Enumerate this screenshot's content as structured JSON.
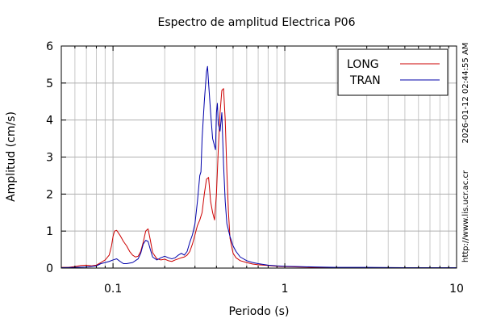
{
  "chart_data": {
    "type": "line",
    "title": "Espectro de amplitud Electrica P06",
    "xlabel": "Periodo (s)",
    "ylabel": "Amplitud (cm/s)",
    "x_scale": "log",
    "xlim": [
      0.05,
      10
    ],
    "ylim": [
      0,
      6
    ],
    "grid": true,
    "legend_position": "top-right",
    "x_ticks": [
      0.1,
      1,
      10
    ],
    "x_tick_labels": [
      "0.1",
      "1",
      "10"
    ],
    "y_ticks": [
      0,
      1,
      2,
      3,
      4,
      5,
      6
    ],
    "y_tick_labels": [
      "0",
      "1",
      "2",
      "3",
      "4",
      "5",
      "6"
    ],
    "side_texts": {
      "timestamp": "2026-01-12 02:44:55 AM",
      "url": "http://www.lis.ucr.ac.cr"
    },
    "series": [
      {
        "name": "LONG",
        "color": "#cc0000",
        "points": [
          [
            0.05,
            0.02
          ],
          [
            0.055,
            0.02
          ],
          [
            0.06,
            0.04
          ],
          [
            0.065,
            0.07
          ],
          [
            0.07,
            0.08
          ],
          [
            0.075,
            0.06
          ],
          [
            0.08,
            0.08
          ],
          [
            0.085,
            0.15
          ],
          [
            0.09,
            0.22
          ],
          [
            0.095,
            0.35
          ],
          [
            0.098,
            0.6
          ],
          [
            0.1,
            0.85
          ],
          [
            0.102,
            1.0
          ],
          [
            0.105,
            1.02
          ],
          [
            0.11,
            0.88
          ],
          [
            0.115,
            0.72
          ],
          [
            0.12,
            0.6
          ],
          [
            0.125,
            0.45
          ],
          [
            0.13,
            0.35
          ],
          [
            0.135,
            0.3
          ],
          [
            0.14,
            0.32
          ],
          [
            0.145,
            0.45
          ],
          [
            0.15,
            0.7
          ],
          [
            0.155,
            1.0
          ],
          [
            0.16,
            1.06
          ],
          [
            0.165,
            0.75
          ],
          [
            0.17,
            0.42
          ],
          [
            0.18,
            0.25
          ],
          [
            0.19,
            0.22
          ],
          [
            0.2,
            0.24
          ],
          [
            0.21,
            0.2
          ],
          [
            0.22,
            0.18
          ],
          [
            0.23,
            0.22
          ],
          [
            0.24,
            0.25
          ],
          [
            0.25,
            0.28
          ],
          [
            0.26,
            0.3
          ],
          [
            0.27,
            0.35
          ],
          [
            0.28,
            0.45
          ],
          [
            0.29,
            0.65
          ],
          [
            0.3,
            0.9
          ],
          [
            0.31,
            1.15
          ],
          [
            0.32,
            1.3
          ],
          [
            0.33,
            1.5
          ],
          [
            0.34,
            2.0
          ],
          [
            0.35,
            2.4
          ],
          [
            0.36,
            2.45
          ],
          [
            0.37,
            1.8
          ],
          [
            0.38,
            1.5
          ],
          [
            0.39,
            1.3
          ],
          [
            0.4,
            2.0
          ],
          [
            0.41,
            3.2
          ],
          [
            0.42,
            4.2
          ],
          [
            0.43,
            4.8
          ],
          [
            0.44,
            4.85
          ],
          [
            0.45,
            4.0
          ],
          [
            0.46,
            2.6
          ],
          [
            0.47,
            1.5
          ],
          [
            0.48,
            0.8
          ],
          [
            0.5,
            0.4
          ],
          [
            0.52,
            0.28
          ],
          [
            0.55,
            0.2
          ],
          [
            0.6,
            0.15
          ],
          [
            0.65,
            0.11
          ],
          [
            0.7,
            0.09
          ],
          [
            0.8,
            0.07
          ],
          [
            0.9,
            0.05
          ],
          [
            1.0,
            0.04
          ],
          [
            1.2,
            0.03
          ],
          [
            1.5,
            0.02
          ],
          [
            2.0,
            0.01
          ],
          [
            3.0,
            0.01
          ],
          [
            5.0,
            0.01
          ],
          [
            10.0,
            0.01
          ]
        ]
      },
      {
        "name": "TRAN",
        "color": "#0000aa",
        "points": [
          [
            0.05,
            0.01
          ],
          [
            0.06,
            0.02
          ],
          [
            0.07,
            0.03
          ],
          [
            0.08,
            0.06
          ],
          [
            0.085,
            0.12
          ],
          [
            0.09,
            0.15
          ],
          [
            0.095,
            0.18
          ],
          [
            0.1,
            0.22
          ],
          [
            0.105,
            0.25
          ],
          [
            0.11,
            0.18
          ],
          [
            0.115,
            0.12
          ],
          [
            0.12,
            0.12
          ],
          [
            0.13,
            0.15
          ],
          [
            0.14,
            0.25
          ],
          [
            0.145,
            0.4
          ],
          [
            0.15,
            0.65
          ],
          [
            0.155,
            0.75
          ],
          [
            0.16,
            0.72
          ],
          [
            0.165,
            0.5
          ],
          [
            0.17,
            0.3
          ],
          [
            0.18,
            0.22
          ],
          [
            0.19,
            0.28
          ],
          [
            0.2,
            0.32
          ],
          [
            0.21,
            0.28
          ],
          [
            0.22,
            0.25
          ],
          [
            0.23,
            0.28
          ],
          [
            0.24,
            0.35
          ],
          [
            0.25,
            0.4
          ],
          [
            0.26,
            0.35
          ],
          [
            0.27,
            0.45
          ],
          [
            0.28,
            0.7
          ],
          [
            0.29,
            0.9
          ],
          [
            0.3,
            1.2
          ],
          [
            0.31,
            1.8
          ],
          [
            0.32,
            2.5
          ],
          [
            0.325,
            2.6
          ],
          [
            0.33,
            3.5
          ],
          [
            0.34,
            4.5
          ],
          [
            0.35,
            5.3
          ],
          [
            0.355,
            5.45
          ],
          [
            0.36,
            5.0
          ],
          [
            0.37,
            4.2
          ],
          [
            0.38,
            3.5
          ],
          [
            0.39,
            3.3
          ],
          [
            0.395,
            3.2
          ],
          [
            0.4,
            4.2
          ],
          [
            0.405,
            4.45
          ],
          [
            0.41,
            3.9
          ],
          [
            0.42,
            3.7
          ],
          [
            0.43,
            4.2
          ],
          [
            0.44,
            2.8
          ],
          [
            0.45,
            1.8
          ],
          [
            0.46,
            1.2
          ],
          [
            0.48,
            0.85
          ],
          [
            0.5,
            0.6
          ],
          [
            0.52,
            0.45
          ],
          [
            0.55,
            0.3
          ],
          [
            0.6,
            0.2
          ],
          [
            0.65,
            0.15
          ],
          [
            0.7,
            0.12
          ],
          [
            0.8,
            0.08
          ],
          [
            0.9,
            0.06
          ],
          [
            1.0,
            0.05
          ],
          [
            1.2,
            0.04
          ],
          [
            1.5,
            0.03
          ],
          [
            2.0,
            0.02
          ],
          [
            3.0,
            0.02
          ],
          [
            5.0,
            0.01
          ],
          [
            10.0,
            0.01
          ]
        ]
      }
    ]
  }
}
